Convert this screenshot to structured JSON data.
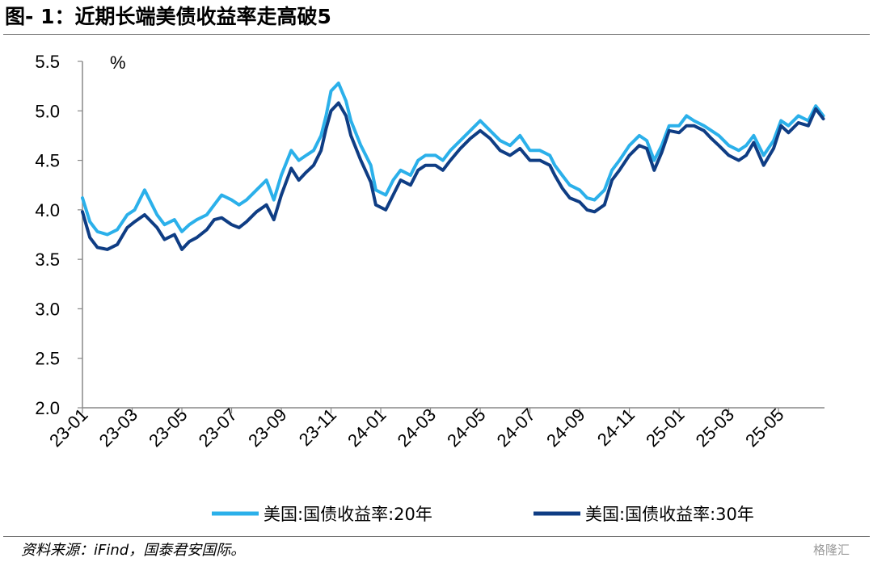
{
  "header": {
    "title": "图- 1：近期长端美债收益率走高破5"
  },
  "footer": {
    "source": "资料来源：iFind，国泰君安国际。",
    "watermark": "格隆汇"
  },
  "chart_data": {
    "type": "line",
    "title": "图- 1：近期长端美债收益率走高破5",
    "ylabel": "%",
    "xlabel": "",
    "ylim": [
      2.0,
      5.5
    ],
    "yticks": [
      "5.5",
      "5.0",
      "4.5",
      "4.0",
      "3.5",
      "3.0",
      "2.5",
      "2.0"
    ],
    "xlim": [
      "23-01",
      "25-06.85"
    ],
    "xticks": [
      "23-01",
      "23-03",
      "23-05",
      "23-07",
      "23-09",
      "23-11",
      "24-01",
      "24-03",
      "24-05",
      "24-07",
      "24-09",
      "24-11",
      "25-01",
      "25-03",
      "25-05"
    ],
    "legend_position": "bottom",
    "grid": false,
    "series": [
      {
        "name": "美国:国债收益率:20年",
        "color": "#2bb0ea",
        "x": [
          0,
          0.3,
          0.6,
          1.0,
          1.4,
          1.8,
          2.1,
          2.5,
          3.0,
          3.3,
          3.7,
          4.0,
          4.3,
          4.6,
          5.0,
          5.3,
          5.6,
          6.0,
          6.3,
          6.6,
          7.0,
          7.4,
          7.7,
          8.0,
          8.4,
          8.7,
          9.0,
          9.3,
          9.6,
          9.8,
          10.0,
          10.3,
          10.6,
          10.8,
          11.2,
          11.6,
          11.8,
          12.2,
          12.5,
          12.8,
          13.2,
          13.5,
          13.8,
          14.2,
          14.5,
          14.8,
          15.2,
          15.6,
          16.0,
          16.4,
          16.8,
          17.2,
          17.6,
          18.0,
          18.4,
          18.8,
          19.0,
          19.3,
          19.6,
          20.0,
          20.3,
          20.6,
          21.0,
          21.3,
          21.6,
          22.0,
          22.4,
          22.7,
          23.0,
          23.3,
          23.6,
          24.0,
          24.3,
          24.6,
          25.0,
          25.3,
          25.6,
          26.0,
          26.4,
          26.7,
          27.0,
          27.4,
          27.8,
          28.1,
          28.4,
          28.8,
          29.2,
          29.5,
          29.8
        ],
        "values": [
          4.12,
          3.88,
          3.78,
          3.75,
          3.8,
          3.95,
          4.0,
          4.2,
          3.95,
          3.85,
          3.9,
          3.78,
          3.85,
          3.9,
          3.95,
          4.05,
          4.15,
          4.1,
          4.05,
          4.1,
          4.2,
          4.3,
          4.1,
          4.35,
          4.6,
          4.5,
          4.55,
          4.6,
          4.75,
          4.95,
          5.2,
          5.28,
          5.1,
          4.9,
          4.65,
          4.45,
          4.2,
          4.15,
          4.3,
          4.4,
          4.35,
          4.5,
          4.55,
          4.55,
          4.5,
          4.6,
          4.7,
          4.8,
          4.9,
          4.8,
          4.7,
          4.65,
          4.75,
          4.6,
          4.6,
          4.55,
          4.45,
          4.35,
          4.25,
          4.2,
          4.12,
          4.1,
          4.2,
          4.4,
          4.5,
          4.65,
          4.75,
          4.7,
          4.5,
          4.65,
          4.85,
          4.85,
          4.95,
          4.9,
          4.85,
          4.8,
          4.75,
          4.65,
          4.6,
          4.65,
          4.75,
          4.55,
          4.7,
          4.9,
          4.85,
          4.95,
          4.9,
          5.05,
          4.95
        ]
      },
      {
        "name": "美国:国债收益率:30年",
        "color": "#0f3d84",
        "x": [
          0,
          0.3,
          0.6,
          1.0,
          1.4,
          1.8,
          2.1,
          2.5,
          3.0,
          3.3,
          3.7,
          4.0,
          4.3,
          4.6,
          5.0,
          5.3,
          5.6,
          6.0,
          6.3,
          6.6,
          7.0,
          7.4,
          7.7,
          8.0,
          8.4,
          8.7,
          9.0,
          9.3,
          9.6,
          9.8,
          10.0,
          10.3,
          10.6,
          10.8,
          11.2,
          11.6,
          11.8,
          12.2,
          12.5,
          12.8,
          13.2,
          13.5,
          13.8,
          14.2,
          14.5,
          14.8,
          15.2,
          15.6,
          16.0,
          16.4,
          16.8,
          17.2,
          17.6,
          18.0,
          18.4,
          18.8,
          19.0,
          19.3,
          19.6,
          20.0,
          20.3,
          20.6,
          21.0,
          21.3,
          21.6,
          22.0,
          22.4,
          22.7,
          23.0,
          23.3,
          23.6,
          24.0,
          24.3,
          24.6,
          25.0,
          25.3,
          25.6,
          26.0,
          26.4,
          26.7,
          27.0,
          27.4,
          27.8,
          28.1,
          28.4,
          28.8,
          29.2,
          29.5,
          29.8
        ],
        "values": [
          3.98,
          3.72,
          3.62,
          3.6,
          3.65,
          3.82,
          3.88,
          3.95,
          3.82,
          3.7,
          3.75,
          3.6,
          3.68,
          3.72,
          3.8,
          3.9,
          3.92,
          3.85,
          3.82,
          3.88,
          3.98,
          4.05,
          3.9,
          4.15,
          4.42,
          4.3,
          4.38,
          4.45,
          4.6,
          4.82,
          5.0,
          5.08,
          4.95,
          4.75,
          4.5,
          4.28,
          4.05,
          4.0,
          4.15,
          4.3,
          4.25,
          4.4,
          4.45,
          4.45,
          4.4,
          4.5,
          4.62,
          4.72,
          4.8,
          4.72,
          4.6,
          4.55,
          4.62,
          4.5,
          4.5,
          4.45,
          4.35,
          4.22,
          4.12,
          4.08,
          4.0,
          3.98,
          4.05,
          4.3,
          4.4,
          4.55,
          4.65,
          4.62,
          4.4,
          4.58,
          4.8,
          4.78,
          4.85,
          4.85,
          4.8,
          4.72,
          4.65,
          4.55,
          4.5,
          4.55,
          4.68,
          4.45,
          4.62,
          4.85,
          4.78,
          4.88,
          4.85,
          5.02,
          4.92
        ]
      }
    ]
  }
}
